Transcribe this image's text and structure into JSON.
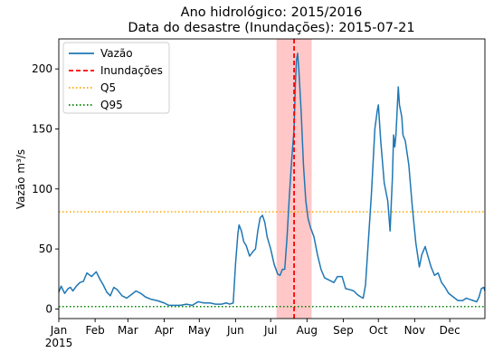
{
  "chart_data": {
    "type": "line",
    "title_line1": "Ano hidrológico: 2015/2016",
    "title_line2": "Data do desastre (Inundações): 2015-07-21",
    "xlabel": "",
    "ylabel": "Vazão m³/s",
    "xlim": [
      "2015-01-01",
      "2015-12-31"
    ],
    "ylim": [
      -8,
      225
    ],
    "grid": false,
    "legend_position": "top-left",
    "x_ticks": [
      {
        "date": "2015-01-01",
        "label": "Jan"
      },
      {
        "date": "2015-02-01",
        "label": "Feb"
      },
      {
        "date": "2015-03-01",
        "label": "Mar"
      },
      {
        "date": "2015-04-01",
        "label": "Apr"
      },
      {
        "date": "2015-05-01",
        "label": "May"
      },
      {
        "date": "2015-06-01",
        "label": "Jun"
      },
      {
        "date": "2015-07-01",
        "label": "Jul"
      },
      {
        "date": "2015-08-01",
        "label": "Aug"
      },
      {
        "date": "2015-09-01",
        "label": "Sep"
      },
      {
        "date": "2015-10-01",
        "label": "Oct"
      },
      {
        "date": "2015-11-01",
        "label": "Nov"
      },
      {
        "date": "2015-12-01",
        "label": "Dec"
      }
    ],
    "x_year_label": "2015",
    "y_ticks": [
      0,
      50,
      100,
      150,
      200
    ],
    "highlight_span": {
      "start": "2015-07-06",
      "end": "2015-08-05",
      "color": "#ff9999"
    },
    "event_line": {
      "date": "2015-07-21",
      "label": "Inundações",
      "color": "#ff0000"
    },
    "thresholds": [
      {
        "name": "Q5",
        "value": 81,
        "color": "#ffa500"
      },
      {
        "name": "Q95",
        "value": 2,
        "color": "#008000"
      }
    ],
    "series": [
      {
        "name": "Vazão",
        "color": "#1f77b4",
        "points": [
          [
            "2015-01-01",
            14
          ],
          [
            "2015-01-03",
            19
          ],
          [
            "2015-01-06",
            13
          ],
          [
            "2015-01-09",
            17
          ],
          [
            "2015-01-11",
            18
          ],
          [
            "2015-01-13",
            15
          ],
          [
            "2015-01-16",
            19
          ],
          [
            "2015-01-19",
            22
          ],
          [
            "2015-01-22",
            23
          ],
          [
            "2015-01-25",
            30
          ],
          [
            "2015-01-29",
            27
          ],
          [
            "2015-02-02",
            31
          ],
          [
            "2015-02-05",
            25
          ],
          [
            "2015-02-08",
            20
          ],
          [
            "2015-02-11",
            14
          ],
          [
            "2015-02-14",
            11
          ],
          [
            "2015-02-17",
            18
          ],
          [
            "2015-02-20",
            16
          ],
          [
            "2015-02-24",
            11
          ],
          [
            "2015-02-28",
            9
          ],
          [
            "2015-03-04",
            12
          ],
          [
            "2015-03-08",
            15
          ],
          [
            "2015-03-12",
            13
          ],
          [
            "2015-03-16",
            10
          ],
          [
            "2015-03-21",
            8
          ],
          [
            "2015-03-26",
            7
          ],
          [
            "2015-04-01",
            5
          ],
          [
            "2015-04-05",
            3
          ],
          [
            "2015-04-10",
            3
          ],
          [
            "2015-04-15",
            3
          ],
          [
            "2015-04-20",
            4
          ],
          [
            "2015-04-25",
            3
          ],
          [
            "2015-04-30",
            6
          ],
          [
            "2015-05-05",
            5
          ],
          [
            "2015-05-10",
            5
          ],
          [
            "2015-05-15",
            4
          ],
          [
            "2015-05-20",
            4
          ],
          [
            "2015-05-24",
            5
          ],
          [
            "2015-05-27",
            4
          ],
          [
            "2015-05-30",
            5
          ],
          [
            "2015-06-01",
            38
          ],
          [
            "2015-06-03",
            63
          ],
          [
            "2015-06-04",
            70
          ],
          [
            "2015-06-06",
            65
          ],
          [
            "2015-06-08",
            56
          ],
          [
            "2015-06-10",
            53
          ],
          [
            "2015-06-13",
            44
          ],
          [
            "2015-06-16",
            48
          ],
          [
            "2015-06-18",
            50
          ],
          [
            "2015-06-20",
            65
          ],
          [
            "2015-06-22",
            76
          ],
          [
            "2015-06-24",
            78
          ],
          [
            "2015-06-26",
            72
          ],
          [
            "2015-06-28",
            60
          ],
          [
            "2015-07-01",
            50
          ],
          [
            "2015-07-04",
            37
          ],
          [
            "2015-07-07",
            29
          ],
          [
            "2015-07-09",
            28
          ],
          [
            "2015-07-11",
            33
          ],
          [
            "2015-07-13",
            33
          ],
          [
            "2015-07-15",
            60
          ],
          [
            "2015-07-17",
            95
          ],
          [
            "2015-07-19",
            125
          ],
          [
            "2015-07-21",
            150
          ],
          [
            "2015-07-22",
            185
          ],
          [
            "2015-07-23",
            207
          ],
          [
            "2015-07-24",
            213
          ],
          [
            "2015-07-25",
            200
          ],
          [
            "2015-07-27",
            165
          ],
          [
            "2015-07-29",
            120
          ],
          [
            "2015-07-31",
            90
          ],
          [
            "2015-08-02",
            75
          ],
          [
            "2015-08-04",
            68
          ],
          [
            "2015-08-07",
            60
          ],
          [
            "2015-08-10",
            45
          ],
          [
            "2015-08-13",
            33
          ],
          [
            "2015-08-16",
            26
          ],
          [
            "2015-08-20",
            24
          ],
          [
            "2015-08-24",
            22
          ],
          [
            "2015-08-27",
            27
          ],
          [
            "2015-08-31",
            27
          ],
          [
            "2015-09-03",
            17
          ],
          [
            "2015-09-07",
            16
          ],
          [
            "2015-09-10",
            15
          ],
          [
            "2015-09-13",
            12
          ],
          [
            "2015-09-16",
            10
          ],
          [
            "2015-09-18",
            9
          ],
          [
            "2015-09-20",
            20
          ],
          [
            "2015-09-22",
            50
          ],
          [
            "2015-09-25",
            95
          ],
          [
            "2015-09-28",
            150
          ],
          [
            "2015-09-30",
            165
          ],
          [
            "2015-10-01",
            170
          ],
          [
            "2015-10-03",
            140
          ],
          [
            "2015-10-06",
            105
          ],
          [
            "2015-10-09",
            90
          ],
          [
            "2015-10-11",
            65
          ],
          [
            "2015-10-13",
            110
          ],
          [
            "2015-10-14",
            145
          ],
          [
            "2015-10-15",
            135
          ],
          [
            "2015-10-16",
            145
          ],
          [
            "2015-10-18",
            185
          ],
          [
            "2015-10-19",
            170
          ],
          [
            "2015-10-21",
            160
          ],
          [
            "2015-10-22",
            145
          ],
          [
            "2015-10-24",
            140
          ],
          [
            "2015-10-27",
            120
          ],
          [
            "2015-10-30",
            85
          ],
          [
            "2015-11-02",
            55
          ],
          [
            "2015-11-05",
            35
          ],
          [
            "2015-11-07",
            45
          ],
          [
            "2015-11-10",
            52
          ],
          [
            "2015-11-12",
            45
          ],
          [
            "2015-11-15",
            35
          ],
          [
            "2015-11-18",
            28
          ],
          [
            "2015-11-21",
            30
          ],
          [
            "2015-11-24",
            22
          ],
          [
            "2015-11-27",
            18
          ],
          [
            "2015-11-30",
            13
          ],
          [
            "2015-12-04",
            10
          ],
          [
            "2015-12-08",
            7
          ],
          [
            "2015-12-12",
            7
          ],
          [
            "2015-12-15",
            9
          ],
          [
            "2015-12-18",
            8
          ],
          [
            "2015-12-21",
            7
          ],
          [
            "2015-12-24",
            6
          ],
          [
            "2015-12-26",
            10
          ],
          [
            "2015-12-28",
            17
          ],
          [
            "2015-12-30",
            18
          ],
          [
            "2015-12-31",
            15
          ]
        ]
      }
    ],
    "legend": [
      {
        "label": "Vazão",
        "style": "solid",
        "color": "#1f77b4"
      },
      {
        "label": "Inundações",
        "style": "dashed",
        "color": "#ff0000"
      },
      {
        "label": "Q5",
        "style": "dotted",
        "color": "#ffa500"
      },
      {
        "label": "Q95",
        "style": "dotted",
        "color": "#008000"
      }
    ]
  }
}
